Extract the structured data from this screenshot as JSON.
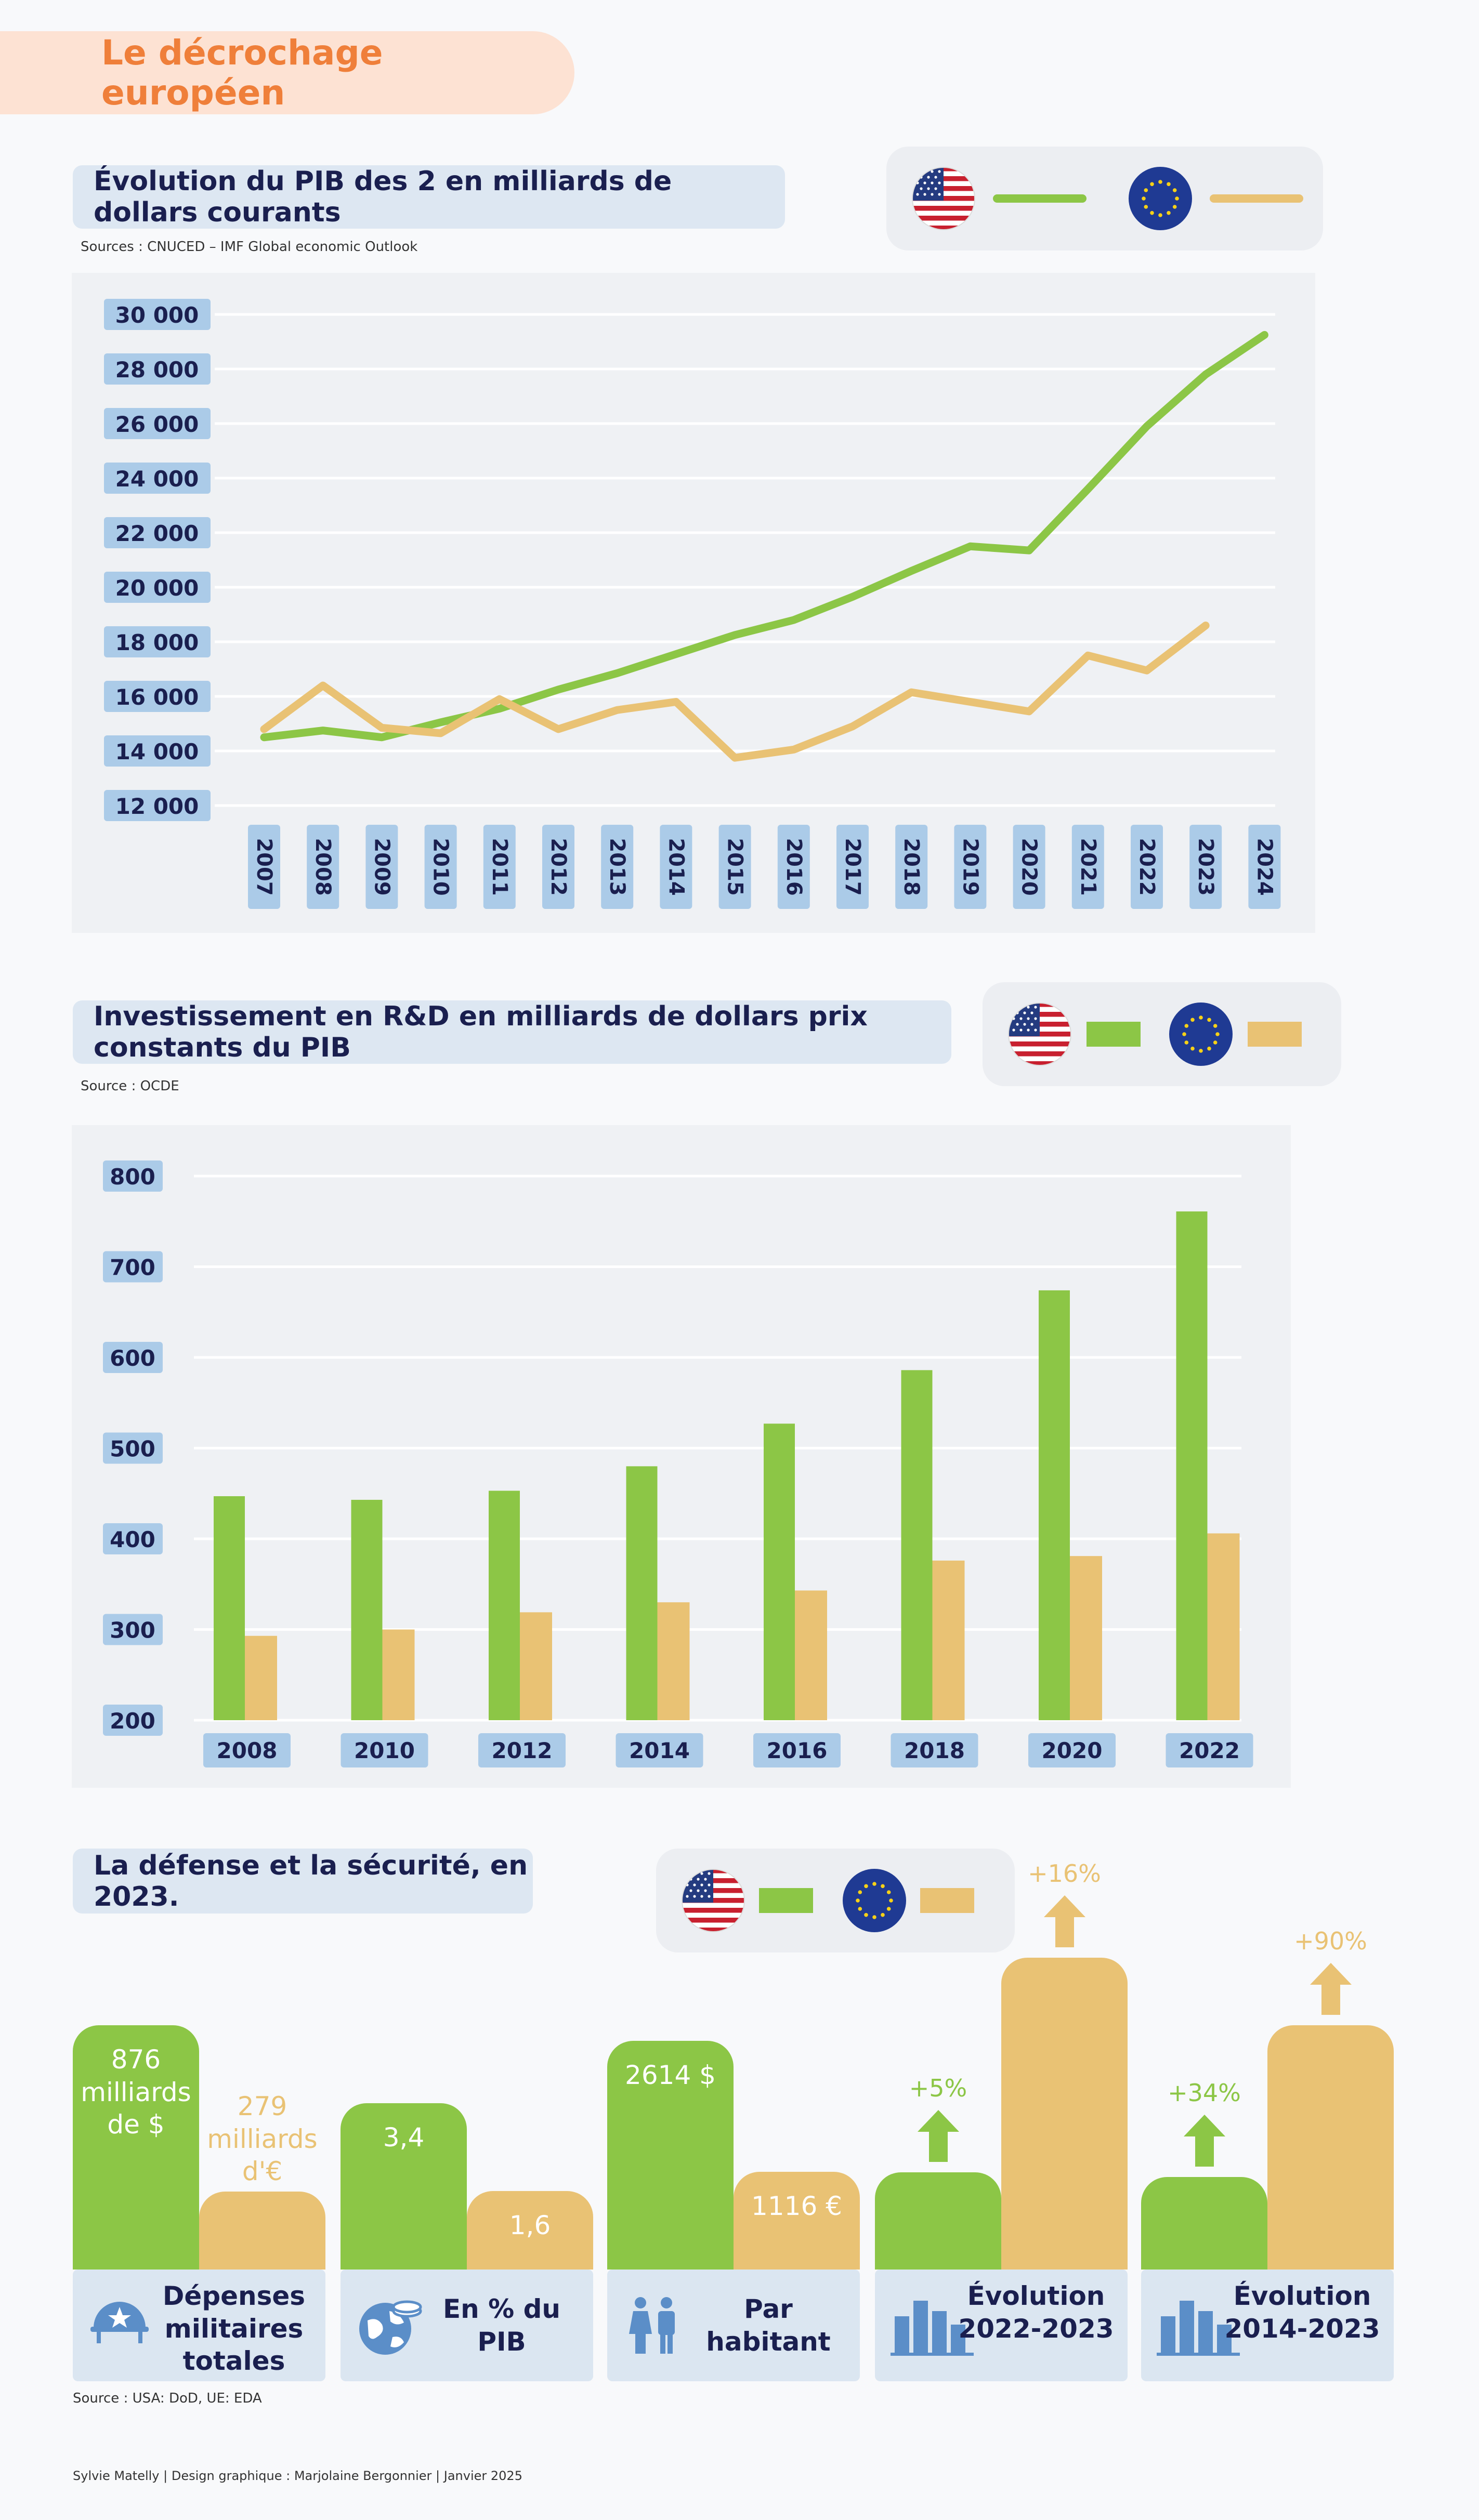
{
  "page_title": "Le décrochage européen",
  "colors": {
    "usa": "#8cc646",
    "eu": "#e9c274",
    "navy": "#1a1f4f",
    "orange": "#ef7f3a",
    "tick_bg": "#abcbe8"
  },
  "legend": {
    "usa_flag": "usa-flag-icon",
    "eu_flag": "eu-flag-icon"
  },
  "chart1": {
    "title": "Évolution du PIB des 2 en milliards de dollars courants",
    "source": "Sources : CNUCED – IMF Global economic Outlook"
  },
  "chart2": {
    "title": "Investissement en R&D en milliards de dollars prix constants du PIB",
    "source": "Source : OCDE"
  },
  "chart3": {
    "title": "La défense et la sécurité, en 2023.",
    "source": "Source : USA: DoD, UE: EDA",
    "cards": [
      {
        "label": "Dépenses militaires totales",
        "icon": "military-helmet-icon",
        "usa_text": "876 milliards de $",
        "eu_text": "279 milliards d'€"
      },
      {
        "label": "En % du PIB",
        "icon": "globe-coins-icon",
        "usa_text": "3,4",
        "eu_text": "1,6"
      },
      {
        "label": "Par habitant",
        "icon": "people-icon",
        "usa_text": "2614 $",
        "eu_text": "1116 €"
      },
      {
        "label": "Évolution 2022-2023",
        "icon": "bar-chart-icon",
        "usa_text": "+5%",
        "eu_text": "+16%"
      },
      {
        "label": "Évolution 2014-2023",
        "icon": "bar-chart-icon",
        "usa_text": "+34%",
        "eu_text": "+90%"
      }
    ]
  },
  "footer": "Sylvie Matelly  |  Design graphique : Marjolaine Bergonnier  |  Janvier 2025",
  "chart_data": [
    {
      "type": "line",
      "x": [
        "2007",
        "2008",
        "2009",
        "2010",
        "2011",
        "2012",
        "2013",
        "2014",
        "2015",
        "2016",
        "2017",
        "2018",
        "2019",
        "2020",
        "2021",
        "2022",
        "2023",
        "2024"
      ],
      "series": [
        {
          "flag": "usa",
          "values": [
            14500,
            14750,
            14500,
            15050,
            15550,
            16250,
            16850,
            17550,
            18250,
            18800,
            19650,
            20600,
            21500,
            21350,
            23600,
            25900,
            27800,
            29250
          ]
        },
        {
          "flag": "eu",
          "values": [
            14800,
            16400,
            14850,
            14650,
            15900,
            14800,
            15500,
            15800,
            13750,
            14050,
            14900,
            16150,
            15800,
            15450,
            17500,
            16950,
            18600,
            null
          ]
        }
      ],
      "yticks": [
        "12 000",
        "14 000",
        "16 000",
        "18 000",
        "20 000",
        "22 000",
        "24 000",
        "26 000",
        "28 000",
        "30 000"
      ],
      "ylim": [
        12000,
        30000
      ],
      "grid": true,
      "legend": "top-right"
    },
    {
      "type": "bar",
      "categories": [
        "2008",
        "2010",
        "2012",
        "2014",
        "2016",
        "2018",
        "2020",
        "2022"
      ],
      "series": [
        {
          "flag": "usa",
          "values": [
            447,
            443,
            453,
            480,
            527,
            586,
            674,
            761
          ]
        },
        {
          "flag": "eu",
          "values": [
            293,
            300,
            319,
            330,
            343,
            376,
            381,
            406
          ]
        }
      ],
      "yticks": [
        "200",
        "300",
        "400",
        "500",
        "600",
        "700",
        "800"
      ],
      "ylim": [
        200,
        800
      ],
      "grid": true,
      "legend": "top-right"
    },
    {
      "type": "bar",
      "categories": [
        "Dépenses militaires totales",
        "En % du PIB",
        "Par habitant",
        "Évolution 2022-2023",
        "Évolution 2014-2023"
      ],
      "series": [
        {
          "flag": "usa",
          "values": [
            876,
            3.4,
            2614,
            5,
            34
          ]
        },
        {
          "flag": "eu",
          "values": [
            279,
            1.6,
            1116,
            16,
            90
          ]
        }
      ],
      "units": [
        "milliards de $ / milliards d'€",
        "% du PIB",
        "$ / € par habitant",
        "%",
        "%"
      ],
      "legend": "top-right"
    }
  ]
}
